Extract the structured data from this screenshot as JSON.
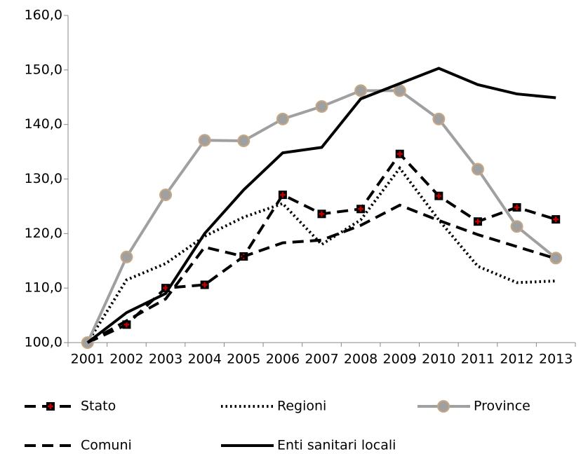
{
  "chart_data": {
    "type": "line",
    "categories": [
      "2001",
      "2002",
      "2003",
      "2004",
      "2005",
      "2006",
      "2007",
      "2008",
      "2009",
      "2010",
      "2011",
      "2012",
      "2013"
    ],
    "series": [
      {
        "name": "Stato",
        "color": "#000000",
        "line_style": "dashed",
        "marker": "plus",
        "marker_color": "#c00000",
        "values": [
          100,
          103.3,
          110,
          110.6,
          115.8,
          127.1,
          123.6,
          124.5,
          134.6,
          126.9,
          122.2,
          124.8,
          122.6
        ]
      },
      {
        "name": "Regioni",
        "color": "#000000",
        "line_style": "dotted",
        "marker": "none",
        "values": [
          100,
          111.5,
          114.5,
          119.5,
          123,
          125.5,
          118,
          122.5,
          132,
          122.5,
          114,
          111,
          111.3
        ]
      },
      {
        "name": "Province",
        "color": "#a0a0a0",
        "line_style": "solid",
        "marker": "circle",
        "marker_color": "#c8a882",
        "values": [
          100,
          115.7,
          127.1,
          137.1,
          137,
          141,
          143.3,
          146.2,
          146.2,
          141,
          131.8,
          121.3,
          115.5
        ]
      },
      {
        "name": "Comuni",
        "color": "#000000",
        "line_style": "dashed",
        "marker": "none",
        "values": [
          100,
          104,
          108,
          117.5,
          115.8,
          118.3,
          118.8,
          121.5,
          125.2,
          122.4,
          119.8,
          117.6,
          115.4
        ]
      },
      {
        "name": "Enti sanitari locali",
        "color": "#000000",
        "line_style": "solid",
        "marker": "none",
        "values": [
          100,
          105.5,
          109,
          120,
          128,
          134.8,
          135.8,
          144.7,
          147.5,
          150.3,
          147.3,
          145.6,
          144.9
        ]
      }
    ],
    "ylim": [
      100,
      160
    ],
    "yticks": [
      {
        "value": 100,
        "label": "100,0"
      },
      {
        "value": 110,
        "label": "110,0"
      },
      {
        "value": 120,
        "label": "120,0"
      },
      {
        "value": 130,
        "label": "130,0"
      },
      {
        "value": 140,
        "label": "140,0"
      },
      {
        "value": 150,
        "label": "150,0"
      },
      {
        "value": 160,
        "label": "160,0"
      }
    ],
    "grid": false,
    "legend": "bottom"
  }
}
